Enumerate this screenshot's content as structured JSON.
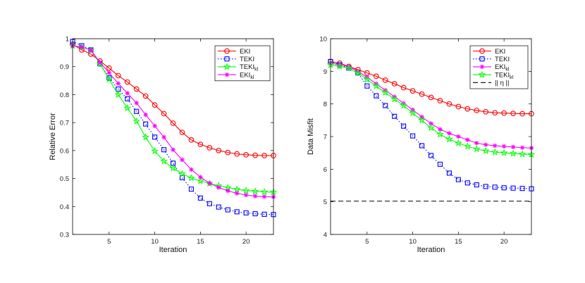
{
  "chart_data": [
    {
      "type": "line",
      "ylabel": "Relative Error",
      "xlabel": "Iteration",
      "xlim": [
        1,
        23
      ],
      "ylim": [
        0.3,
        1.0
      ],
      "xticks": [
        5,
        10,
        15,
        20
      ],
      "xtick_labels": [
        "5",
        "10",
        "15",
        "20"
      ],
      "yticks": [
        0.3,
        0.4,
        0.5,
        0.6,
        0.7,
        0.8,
        0.9,
        1.0
      ],
      "ytick_labels": [
        "0.3",
        "0.4",
        "0.5",
        "0.6",
        "0.7",
        "0.8",
        "0.9",
        "1"
      ],
      "legend_position": "top-right",
      "x": [
        1,
        2,
        3,
        4,
        5,
        6,
        7,
        8,
        9,
        10,
        11,
        12,
        13,
        14,
        15,
        16,
        17,
        18,
        19,
        20,
        21,
        22,
        23
      ],
      "series": [
        {
          "name": "EKI",
          "sub": "",
          "color": "#ff0000",
          "dash": "solid",
          "marker": "circle",
          "values": [
            0.98,
            0.96,
            0.945,
            0.92,
            0.895,
            0.868,
            0.845,
            0.82,
            0.795,
            0.763,
            0.732,
            0.698,
            0.665,
            0.638,
            0.622,
            0.61,
            0.6,
            0.593,
            0.588,
            0.585,
            0.583,
            0.582,
            0.582
          ]
        },
        {
          "name": "TEKI",
          "sub": "",
          "color": "#0000ff",
          "dash": "dotted",
          "marker": "square",
          "values": [
            0.99,
            0.975,
            0.96,
            0.91,
            0.86,
            0.82,
            0.785,
            0.74,
            0.695,
            0.648,
            0.603,
            0.555,
            0.503,
            0.462,
            0.43,
            0.41,
            0.398,
            0.388,
            0.381,
            0.377,
            0.374,
            0.372,
            0.371
          ]
        },
        {
          "name": "TEKI",
          "sub": "kl",
          "color": "#00ff00",
          "dash": "solid",
          "marker": "star",
          "values": [
            0.975,
            0.97,
            0.96,
            0.91,
            0.855,
            0.8,
            0.752,
            0.705,
            0.648,
            0.598,
            0.562,
            0.537,
            0.517,
            0.502,
            0.491,
            0.482,
            0.474,
            0.467,
            0.461,
            0.457,
            0.454,
            0.452,
            0.451
          ]
        },
        {
          "name": "EKI",
          "sub": "kl",
          "color": "#ff00ff",
          "dash": "solid",
          "marker": "asterisk",
          "values": [
            0.975,
            0.97,
            0.96,
            0.915,
            0.878,
            0.84,
            0.805,
            0.77,
            0.728,
            0.688,
            0.648,
            0.603,
            0.567,
            0.532,
            0.505,
            0.483,
            0.468,
            0.456,
            0.447,
            0.441,
            0.437,
            0.435,
            0.434
          ]
        }
      ]
    },
    {
      "type": "line",
      "ylabel": "Data Misfit",
      "xlabel": "Iteration",
      "xlim": [
        1,
        23
      ],
      "ylim": [
        4,
        10
      ],
      "xticks": [
        5,
        10,
        15,
        20
      ],
      "xtick_labels": [
        "5",
        "10",
        "15",
        "20"
      ],
      "yticks": [
        4,
        5,
        6,
        7,
        8,
        9,
        10
      ],
      "ytick_labels": [
        "4",
        "5",
        "6",
        "7",
        "8",
        "9",
        "10"
      ],
      "legend_position": "top-right",
      "x": [
        1,
        2,
        3,
        4,
        5,
        6,
        7,
        8,
        9,
        10,
        11,
        12,
        13,
        14,
        15,
        16,
        17,
        18,
        19,
        20,
        21,
        22,
        23
      ],
      "series": [
        {
          "name": "EKI",
          "sub": "",
          "color": "#ff0000",
          "dash": "solid",
          "marker": "circle",
          "values": [
            9.3,
            9.25,
            9.15,
            9.05,
            8.95,
            8.85,
            8.73,
            8.62,
            8.5,
            8.4,
            8.3,
            8.2,
            8.1,
            8.0,
            7.92,
            7.85,
            7.8,
            7.76,
            7.73,
            7.72,
            7.71,
            7.7,
            7.7
          ]
        },
        {
          "name": "TEKI",
          "sub": "",
          "color": "#0000ff",
          "dash": "dotted",
          "marker": "square",
          "values": [
            9.3,
            9.2,
            9.1,
            8.95,
            8.55,
            8.25,
            7.95,
            7.62,
            7.32,
            7.02,
            6.72,
            6.42,
            6.15,
            5.88,
            5.68,
            5.58,
            5.52,
            5.47,
            5.45,
            5.43,
            5.42,
            5.41,
            5.4
          ]
        },
        {
          "name": "EKI",
          "sub": "kl",
          "color": "#ff00ff",
          "dash": "solid",
          "marker": "asterisk",
          "values": [
            9.25,
            9.2,
            9.15,
            9.0,
            8.82,
            8.62,
            8.42,
            8.22,
            8.02,
            7.82,
            7.6,
            7.4,
            7.22,
            7.1,
            7.0,
            6.9,
            6.8,
            6.75,
            6.72,
            6.7,
            6.68,
            6.66,
            6.65
          ]
        },
        {
          "name": "TEKI",
          "sub": "kl",
          "color": "#00ff00",
          "dash": "solid",
          "marker": "star",
          "values": [
            9.2,
            9.15,
            9.1,
            8.95,
            8.75,
            8.55,
            8.35,
            8.15,
            7.95,
            7.72,
            7.5,
            7.27,
            7.07,
            6.92,
            6.8,
            6.7,
            6.62,
            6.56,
            6.52,
            6.5,
            6.48,
            6.46,
            6.45
          ]
        },
        {
          "name": "|| η ||",
          "sub": "",
          "color": "#000000",
          "dash": "dashed",
          "marker": "none",
          "values": [
            5.02,
            5.02,
            5.02,
            5.02,
            5.02,
            5.02,
            5.02,
            5.02,
            5.02,
            5.02,
            5.02,
            5.02,
            5.02,
            5.02,
            5.02,
            5.02,
            5.02,
            5.02,
            5.02,
            5.02,
            5.02,
            5.02,
            5.02
          ]
        }
      ]
    }
  ]
}
